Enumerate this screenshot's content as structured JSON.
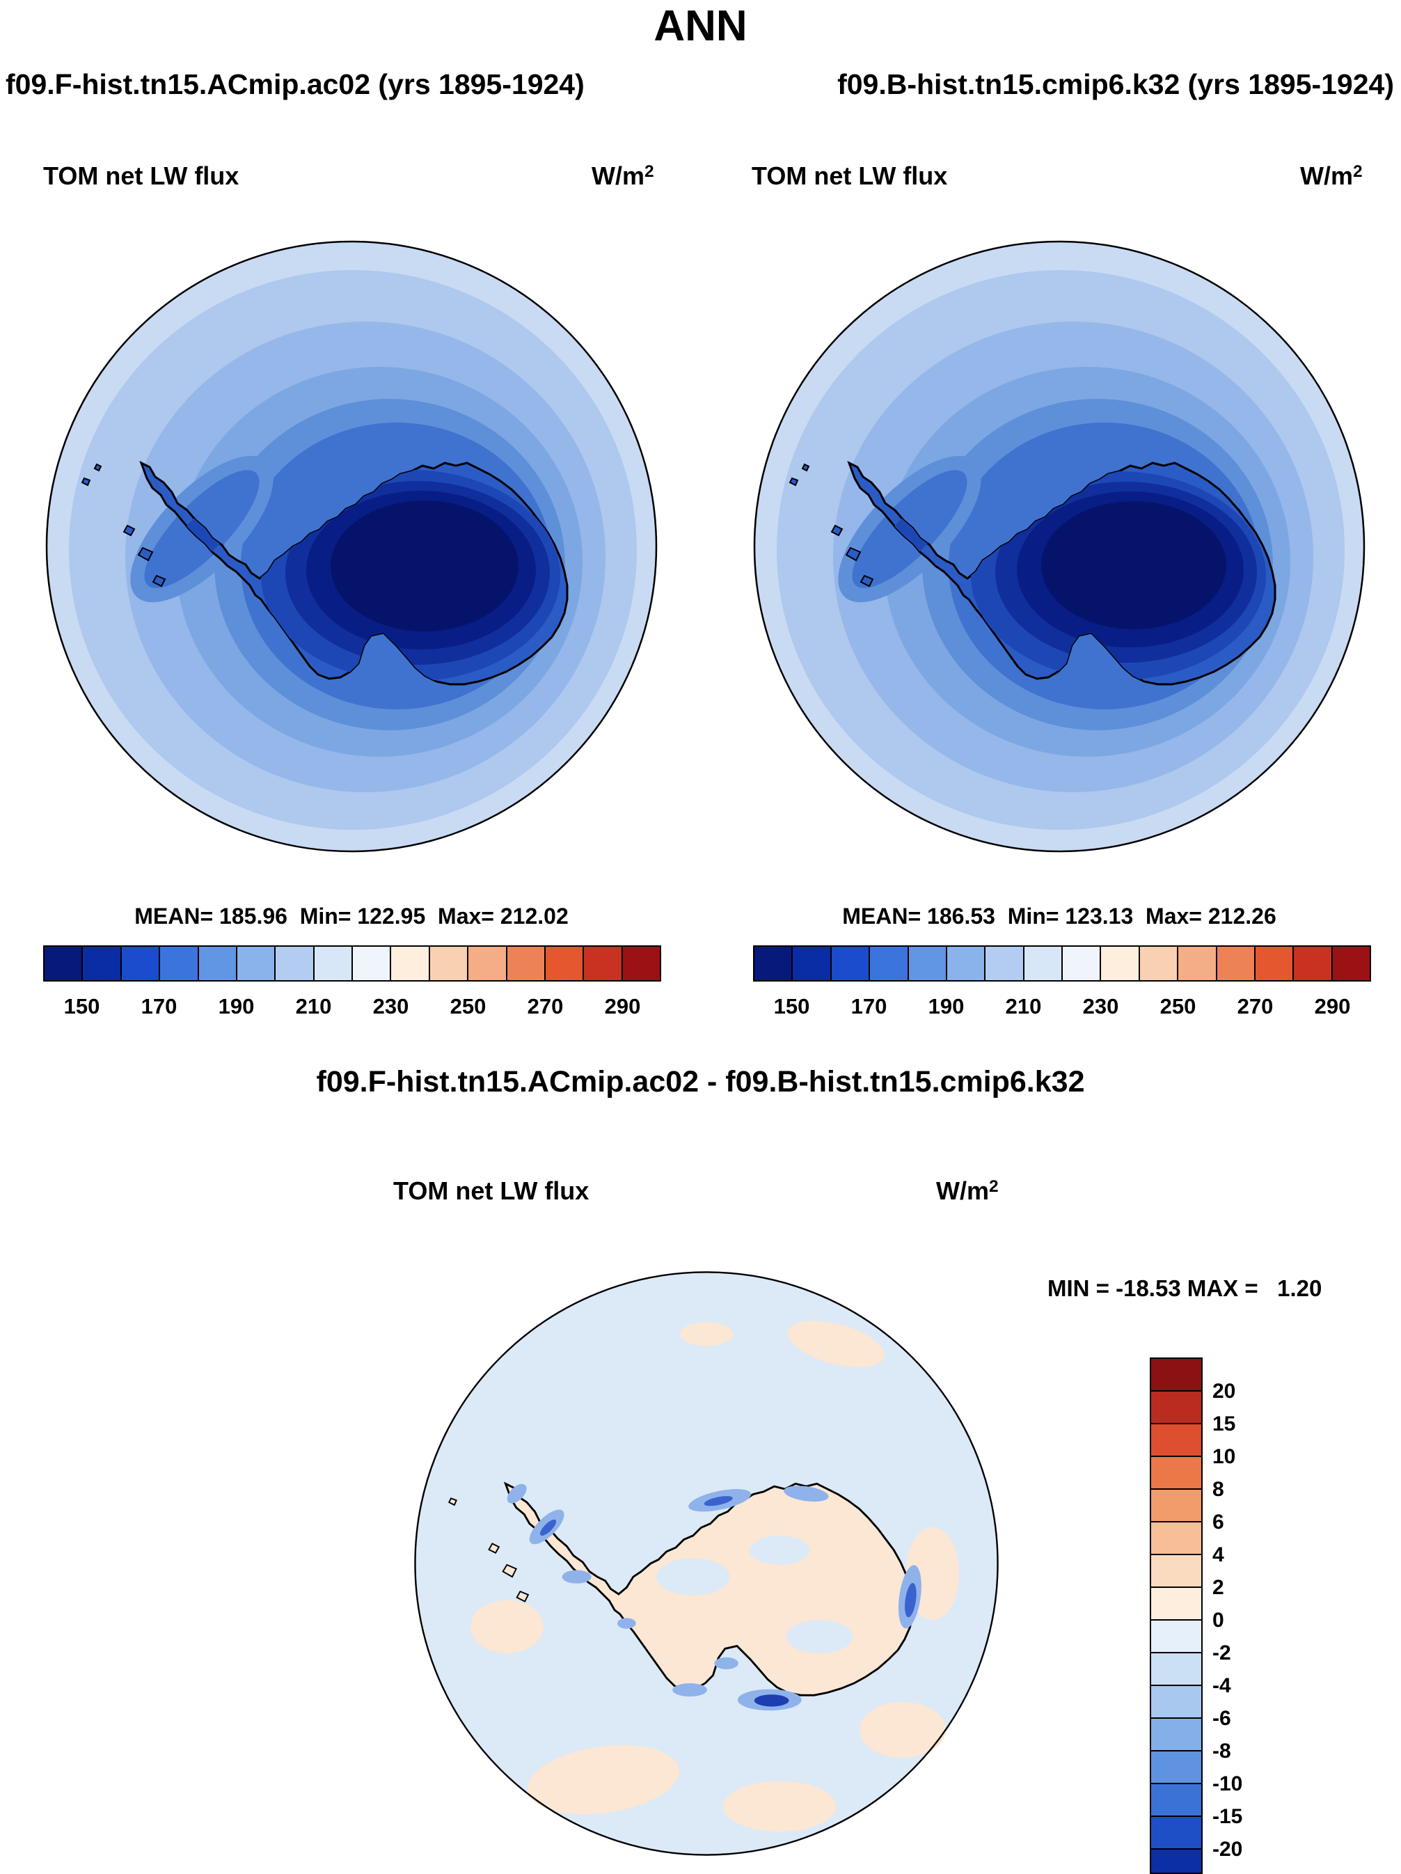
{
  "title": "ANN",
  "runs": {
    "left": "f09.F-hist.tn15.ACmip.ac02 (yrs 1895-1924)",
    "right": "f09.B-hist.tn15.cmip6.k32 (yrs 1895-1924)"
  },
  "diff_title": "f09.F-hist.tn15.ACmip.ac02 - f09.B-hist.tn15.cmip6.k32",
  "panels": {
    "left": {
      "field": "TOM net LW flux",
      "units_base": "W/m",
      "units_exp": "2",
      "stats": "MEAN= 185.96  Min= 122.95  Max= 212.02"
    },
    "right": {
      "field": "TOM net LW flux",
      "units_base": "W/m",
      "units_exp": "2",
      "stats": "MEAN= 186.53  Min= 123.13  Max= 212.26"
    },
    "diff": {
      "field": "TOM net LW flux",
      "units_base": "W/m",
      "units_exp": "2",
      "minmax": "MIN = -18.53 MAX =   1.20"
    }
  },
  "chart_data": [
    {
      "type": "heatmap",
      "subtype": "south-polar-stereographic-map",
      "title": "f09.F-hist.tn15.ACmip.ac02 (yrs 1895-1924)",
      "field": "TOM net LW flux",
      "units": "W/m^2",
      "season": "ANN",
      "stats": {
        "mean": 185.96,
        "min": 122.95,
        "max": 212.02
      },
      "colorbar": {
        "orientation": "horizontal",
        "tick_labels": [
          150,
          170,
          190,
          210,
          230,
          250,
          270,
          290
        ],
        "colors": [
          "#07197b",
          "#0a2da6",
          "#1a4ccd",
          "#3b74dc",
          "#6096e4",
          "#8ab3ec",
          "#b3cdf2",
          "#d8e7f8",
          "#eff5fb",
          "#fdeedd",
          "#f9d0b2",
          "#f5ad85",
          "#ee8257",
          "#e4572f",
          "#c93120",
          "#9c1214"
        ]
      }
    },
    {
      "type": "heatmap",
      "subtype": "south-polar-stereographic-map",
      "title": "f09.B-hist.tn15.cmip6.k32 (yrs 1895-1924)",
      "field": "TOM net LW flux",
      "units": "W/m^2",
      "season": "ANN",
      "stats": {
        "mean": 186.53,
        "min": 123.13,
        "max": 212.26
      },
      "colorbar": {
        "orientation": "horizontal",
        "tick_labels": [
          150,
          170,
          190,
          210,
          230,
          250,
          270,
          290
        ],
        "colors": [
          "#07197b",
          "#0a2da6",
          "#1a4ccd",
          "#3b74dc",
          "#6096e4",
          "#8ab3ec",
          "#b3cdf2",
          "#d8e7f8",
          "#eff5fb",
          "#fdeedd",
          "#f9d0b2",
          "#f5ad85",
          "#ee8257",
          "#e4572f",
          "#c93120",
          "#9c1214"
        ]
      }
    },
    {
      "type": "heatmap",
      "subtype": "south-polar-stereographic-map",
      "title": "f09.F-hist.tn15.ACmip.ac02 - f09.B-hist.tn15.cmip6.k32",
      "field": "TOM net LW flux",
      "units": "W/m^2",
      "season": "ANN",
      "stats": {
        "min": -18.53,
        "max": 1.2
      },
      "colorbar": {
        "orientation": "vertical",
        "tick_labels": [
          20,
          15,
          10,
          8,
          6,
          4,
          2,
          0,
          -2,
          -4,
          -6,
          -8,
          -10,
          -15,
          -20
        ],
        "colors": [
          "#8c1113",
          "#bb2c20",
          "#dd4f2e",
          "#ea7848",
          "#f29c6b",
          "#f7bf97",
          "#fbdbc0",
          "#fdeedd",
          "#e6f0fa",
          "#cbdff5",
          "#a8c8ef",
          "#84afe8",
          "#5f92e0",
          "#3b72d6",
          "#1e4fc4",
          "#0c2fa6"
        ]
      }
    }
  ]
}
